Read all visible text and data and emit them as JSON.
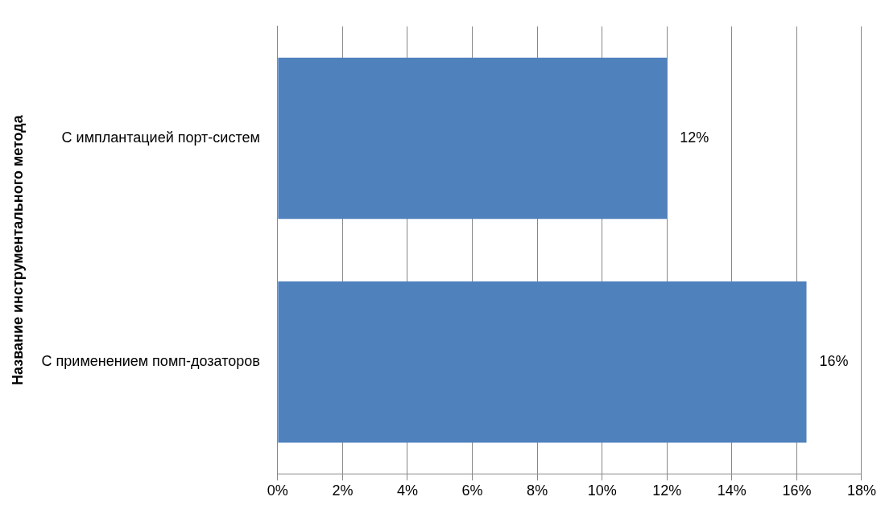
{
  "chart_data": {
    "type": "bar",
    "orientation": "horizontal",
    "ylabel": "Название инструментального метода",
    "categories": [
      "С имплантацией порт-систем",
      "С применением помп-дозаторов"
    ],
    "values": [
      12,
      16.3
    ],
    "value_labels": [
      "12%",
      "16%"
    ],
    "color": "#4f81bd",
    "xlim": [
      0,
      18
    ],
    "xticks": [
      {
        "value": 0,
        "label": "0%"
      },
      {
        "value": 2,
        "label": "2%"
      },
      {
        "value": 4,
        "label": "4%"
      },
      {
        "value": 6,
        "label": "6%"
      },
      {
        "value": 8,
        "label": "8%"
      },
      {
        "value": 10,
        "label": "10%"
      },
      {
        "value": 12,
        "label": "12%"
      },
      {
        "value": 14,
        "label": "14%"
      },
      {
        "value": 16,
        "label": "16%"
      },
      {
        "value": 18,
        "label": "18%"
      }
    ],
    "grid": "x",
    "legend": false
  }
}
